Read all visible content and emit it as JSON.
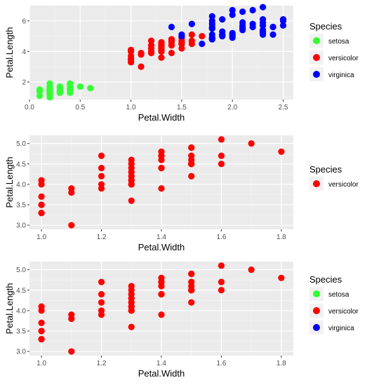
{
  "chart_data": [
    {
      "type": "scatter",
      "xlabel": "Petal.Width",
      "ylabel": "Petal.Length",
      "xlim": [
        0.0,
        2.6
      ],
      "ylim": [
        0.85,
        7.0
      ],
      "xticks": [
        0.0,
        0.5,
        1.0,
        1.5,
        2.0,
        2.5
      ],
      "xtick_labels": [
        "0.0",
        "0.5",
        "1.0",
        "1.5",
        "2.0",
        "2.5"
      ],
      "yticks": [
        2,
        4,
        6
      ],
      "ytick_labels": [
        "2",
        "4",
        "6"
      ],
      "grid": true,
      "legend": {
        "title": "Species",
        "placement": "right"
      },
      "series": [
        {
          "name": "setosa",
          "color": "#33ff33",
          "points": [
            [
              0.2,
              1.4
            ],
            [
              0.2,
              1.4
            ],
            [
              0.2,
              1.3
            ],
            [
              0.2,
              1.5
            ],
            [
              0.2,
              1.4
            ],
            [
              0.4,
              1.7
            ],
            [
              0.3,
              1.4
            ],
            [
              0.2,
              1.5
            ],
            [
              0.2,
              1.4
            ],
            [
              0.1,
              1.5
            ],
            [
              0.2,
              1.5
            ],
            [
              0.2,
              1.6
            ],
            [
              0.1,
              1.4
            ],
            [
              0.1,
              1.1
            ],
            [
              0.2,
              1.2
            ],
            [
              0.4,
              1.5
            ],
            [
              0.4,
              1.3
            ],
            [
              0.3,
              1.4
            ],
            [
              0.3,
              1.7
            ],
            [
              0.3,
              1.5
            ],
            [
              0.2,
              1.7
            ],
            [
              0.4,
              1.5
            ],
            [
              0.2,
              1.0
            ],
            [
              0.5,
              1.7
            ],
            [
              0.2,
              1.9
            ],
            [
              0.2,
              1.6
            ],
            [
              0.4,
              1.6
            ],
            [
              0.2,
              1.5
            ],
            [
              0.2,
              1.4
            ],
            [
              0.2,
              1.6
            ],
            [
              0.2,
              1.6
            ],
            [
              0.4,
              1.5
            ],
            [
              0.1,
              1.5
            ],
            [
              0.2,
              1.4
            ],
            [
              0.2,
              1.5
            ],
            [
              0.2,
              1.2
            ],
            [
              0.2,
              1.3
            ],
            [
              0.1,
              1.4
            ],
            [
              0.2,
              1.3
            ],
            [
              0.2,
              1.5
            ],
            [
              0.3,
              1.3
            ],
            [
              0.3,
              1.3
            ],
            [
              0.2,
              1.3
            ],
            [
              0.6,
              1.6
            ],
            [
              0.4,
              1.9
            ],
            [
              0.3,
              1.4
            ],
            [
              0.2,
              1.6
            ],
            [
              0.2,
              1.4
            ],
            [
              0.2,
              1.5
            ],
            [
              0.2,
              1.4
            ]
          ]
        },
        {
          "name": "versicolor",
          "color": "#ff0000",
          "points": [
            [
              1.4,
              4.7
            ],
            [
              1.5,
              4.5
            ],
            [
              1.5,
              4.9
            ],
            [
              1.3,
              4.0
            ],
            [
              1.5,
              4.6
            ],
            [
              1.3,
              4.5
            ],
            [
              1.6,
              4.7
            ],
            [
              1.0,
              3.3
            ],
            [
              1.3,
              4.6
            ],
            [
              1.4,
              3.9
            ],
            [
              1.0,
              3.5
            ],
            [
              1.5,
              4.2
            ],
            [
              1.0,
              4.0
            ],
            [
              1.4,
              4.7
            ],
            [
              1.3,
              3.6
            ],
            [
              1.4,
              4.4
            ],
            [
              1.5,
              4.5
            ],
            [
              1.0,
              4.1
            ],
            [
              1.5,
              4.5
            ],
            [
              1.1,
              3.9
            ],
            [
              1.8,
              4.8
            ],
            [
              1.3,
              4.0
            ],
            [
              1.5,
              4.9
            ],
            [
              1.2,
              4.7
            ],
            [
              1.3,
              4.3
            ],
            [
              1.4,
              4.4
            ],
            [
              1.4,
              4.8
            ],
            [
              1.7,
              5.0
            ],
            [
              1.5,
              4.5
            ],
            [
              1.0,
              3.5
            ],
            [
              1.1,
              3.8
            ],
            [
              1.0,
              3.7
            ],
            [
              1.2,
              3.9
            ],
            [
              1.6,
              5.1
            ],
            [
              1.5,
              4.5
            ],
            [
              1.6,
              4.5
            ],
            [
              1.5,
              4.7
            ],
            [
              1.3,
              4.4
            ],
            [
              1.3,
              4.1
            ],
            [
              1.3,
              4.0
            ],
            [
              1.2,
              4.4
            ],
            [
              1.4,
              4.6
            ],
            [
              1.2,
              4.0
            ],
            [
              1.0,
              3.3
            ],
            [
              1.3,
              4.2
            ],
            [
              1.2,
              4.2
            ],
            [
              1.3,
              4.2
            ],
            [
              1.3,
              4.3
            ],
            [
              1.1,
              3.0
            ],
            [
              1.3,
              4.1
            ]
          ]
        },
        {
          "name": "virginica",
          "color": "#0000ff",
          "points": [
            [
              2.5,
              6.0
            ],
            [
              1.9,
              5.1
            ],
            [
              2.1,
              5.9
            ],
            [
              1.8,
              5.6
            ],
            [
              2.2,
              5.8
            ],
            [
              2.1,
              6.6
            ],
            [
              1.7,
              4.5
            ],
            [
              1.8,
              6.3
            ],
            [
              1.8,
              5.8
            ],
            [
              2.5,
              6.1
            ],
            [
              2.0,
              5.1
            ],
            [
              1.9,
              5.3
            ],
            [
              2.1,
              5.5
            ],
            [
              2.0,
              5.0
            ],
            [
              2.4,
              5.1
            ],
            [
              2.3,
              5.3
            ],
            [
              1.8,
              5.5
            ],
            [
              2.2,
              6.7
            ],
            [
              2.3,
              6.9
            ],
            [
              1.5,
              5.0
            ],
            [
              2.3,
              5.7
            ],
            [
              2.0,
              4.9
            ],
            [
              2.0,
              6.7
            ],
            [
              1.8,
              4.9
            ],
            [
              2.1,
              5.7
            ],
            [
              1.8,
              6.0
            ],
            [
              1.8,
              4.8
            ],
            [
              1.8,
              4.9
            ],
            [
              2.1,
              5.6
            ],
            [
              1.6,
              5.8
            ],
            [
              1.9,
              6.1
            ],
            [
              2.0,
              6.4
            ],
            [
              2.2,
              5.6
            ],
            [
              1.5,
              5.1
            ],
            [
              1.4,
              5.6
            ],
            [
              2.3,
              6.1
            ],
            [
              2.4,
              5.6
            ],
            [
              1.8,
              5.5
            ],
            [
              1.8,
              4.8
            ],
            [
              2.1,
              5.4
            ],
            [
              2.4,
              5.6
            ],
            [
              2.3,
              5.1
            ],
            [
              1.9,
              5.1
            ],
            [
              2.3,
              5.9
            ],
            [
              2.5,
              5.7
            ],
            [
              2.3,
              5.2
            ],
            [
              1.9,
              5.0
            ],
            [
              2.0,
              5.2
            ],
            [
              2.3,
              5.4
            ],
            [
              1.8,
              5.1
            ]
          ]
        }
      ]
    },
    {
      "type": "scatter",
      "xlabel": "Petal.Width",
      "ylabel": "Petal.Length",
      "xlim": [
        0.96,
        1.84
      ],
      "ylim": [
        2.9,
        5.2
      ],
      "xticks": [
        1.0,
        1.2,
        1.4,
        1.6,
        1.8
      ],
      "xtick_labels": [
        "1.0",
        "1.2",
        "1.4",
        "1.6",
        "1.8"
      ],
      "yticks": [
        3.0,
        3.5,
        4.0,
        4.5,
        5.0
      ],
      "ytick_labels": [
        "3.0",
        "3.5",
        "4.0",
        "4.5",
        "5.0"
      ],
      "grid": true,
      "legend": {
        "title": "Species",
        "placement": "right"
      },
      "series": [
        {
          "name": "versicolor",
          "color": "#ff0000",
          "points": [
            [
              1.4,
              4.7
            ],
            [
              1.5,
              4.5
            ],
            [
              1.5,
              4.9
            ],
            [
              1.3,
              4.0
            ],
            [
              1.5,
              4.6
            ],
            [
              1.3,
              4.5
            ],
            [
              1.6,
              4.7
            ],
            [
              1.0,
              3.3
            ],
            [
              1.3,
              4.6
            ],
            [
              1.4,
              3.9
            ],
            [
              1.0,
              3.5
            ],
            [
              1.5,
              4.2
            ],
            [
              1.0,
              4.0
            ],
            [
              1.4,
              4.7
            ],
            [
              1.3,
              3.6
            ],
            [
              1.4,
              4.4
            ],
            [
              1.5,
              4.5
            ],
            [
              1.0,
              4.1
            ],
            [
              1.5,
              4.5
            ],
            [
              1.1,
              3.9
            ],
            [
              1.8,
              4.8
            ],
            [
              1.3,
              4.0
            ],
            [
              1.5,
              4.9
            ],
            [
              1.2,
              4.7
            ],
            [
              1.3,
              4.3
            ],
            [
              1.4,
              4.4
            ],
            [
              1.4,
              4.8
            ],
            [
              1.7,
              5.0
            ],
            [
              1.5,
              4.5
            ],
            [
              1.0,
              3.5
            ],
            [
              1.1,
              3.8
            ],
            [
              1.0,
              3.7
            ],
            [
              1.2,
              3.9
            ],
            [
              1.6,
              5.1
            ],
            [
              1.5,
              4.5
            ],
            [
              1.6,
              4.5
            ],
            [
              1.5,
              4.7
            ],
            [
              1.3,
              4.4
            ],
            [
              1.3,
              4.1
            ],
            [
              1.3,
              4.0
            ],
            [
              1.2,
              4.4
            ],
            [
              1.4,
              4.6
            ],
            [
              1.2,
              4.0
            ],
            [
              1.0,
              3.3
            ],
            [
              1.3,
              4.2
            ],
            [
              1.2,
              4.2
            ],
            [
              1.3,
              4.2
            ],
            [
              1.3,
              4.3
            ],
            [
              1.1,
              3.0
            ],
            [
              1.3,
              4.1
            ]
          ]
        }
      ]
    },
    {
      "type": "scatter",
      "xlabel": "Petal.Width",
      "ylabel": "Petal.Length",
      "xlim": [
        0.96,
        1.84
      ],
      "ylim": [
        2.9,
        5.2
      ],
      "xticks": [
        1.0,
        1.2,
        1.4,
        1.6,
        1.8
      ],
      "xtick_labels": [
        "1.0",
        "1.2",
        "1.4",
        "1.6",
        "1.8"
      ],
      "yticks": [
        3.0,
        3.5,
        4.0,
        4.5,
        5.0
      ],
      "ytick_labels": [
        "3.0",
        "3.5",
        "4.0",
        "4.5",
        "5.0"
      ],
      "grid": true,
      "legend": {
        "title": "Species",
        "placement": "right",
        "entries": [
          {
            "name": "setosa",
            "color": "#33ff33"
          },
          {
            "name": "versicolor",
            "color": "#ff0000"
          },
          {
            "name": "virginica",
            "color": "#0000ff"
          }
        ]
      },
      "series": [
        {
          "name": "versicolor",
          "color": "#ff0000",
          "points": [
            [
              1.4,
              4.7
            ],
            [
              1.5,
              4.5
            ],
            [
              1.5,
              4.9
            ],
            [
              1.3,
              4.0
            ],
            [
              1.5,
              4.6
            ],
            [
              1.3,
              4.5
            ],
            [
              1.6,
              4.7
            ],
            [
              1.0,
              3.3
            ],
            [
              1.3,
              4.6
            ],
            [
              1.4,
              3.9
            ],
            [
              1.0,
              3.5
            ],
            [
              1.5,
              4.2
            ],
            [
              1.0,
              4.0
            ],
            [
              1.4,
              4.7
            ],
            [
              1.3,
              3.6
            ],
            [
              1.4,
              4.4
            ],
            [
              1.5,
              4.5
            ],
            [
              1.0,
              4.1
            ],
            [
              1.5,
              4.5
            ],
            [
              1.1,
              3.9
            ],
            [
              1.8,
              4.8
            ],
            [
              1.3,
              4.0
            ],
            [
              1.5,
              4.9
            ],
            [
              1.2,
              4.7
            ],
            [
              1.3,
              4.3
            ],
            [
              1.4,
              4.4
            ],
            [
              1.4,
              4.8
            ],
            [
              1.7,
              5.0
            ],
            [
              1.5,
              4.5
            ],
            [
              1.0,
              3.5
            ],
            [
              1.1,
              3.8
            ],
            [
              1.0,
              3.7
            ],
            [
              1.2,
              3.9
            ],
            [
              1.6,
              5.1
            ],
            [
              1.5,
              4.5
            ],
            [
              1.6,
              4.5
            ],
            [
              1.5,
              4.7
            ],
            [
              1.3,
              4.4
            ],
            [
              1.3,
              4.1
            ],
            [
              1.3,
              4.0
            ],
            [
              1.2,
              4.4
            ],
            [
              1.4,
              4.6
            ],
            [
              1.2,
              4.0
            ],
            [
              1.0,
              3.3
            ],
            [
              1.3,
              4.2
            ],
            [
              1.2,
              4.2
            ],
            [
              1.3,
              4.2
            ],
            [
              1.3,
              4.3
            ],
            [
              1.1,
              3.0
            ],
            [
              1.3,
              4.1
            ]
          ]
        }
      ]
    }
  ]
}
